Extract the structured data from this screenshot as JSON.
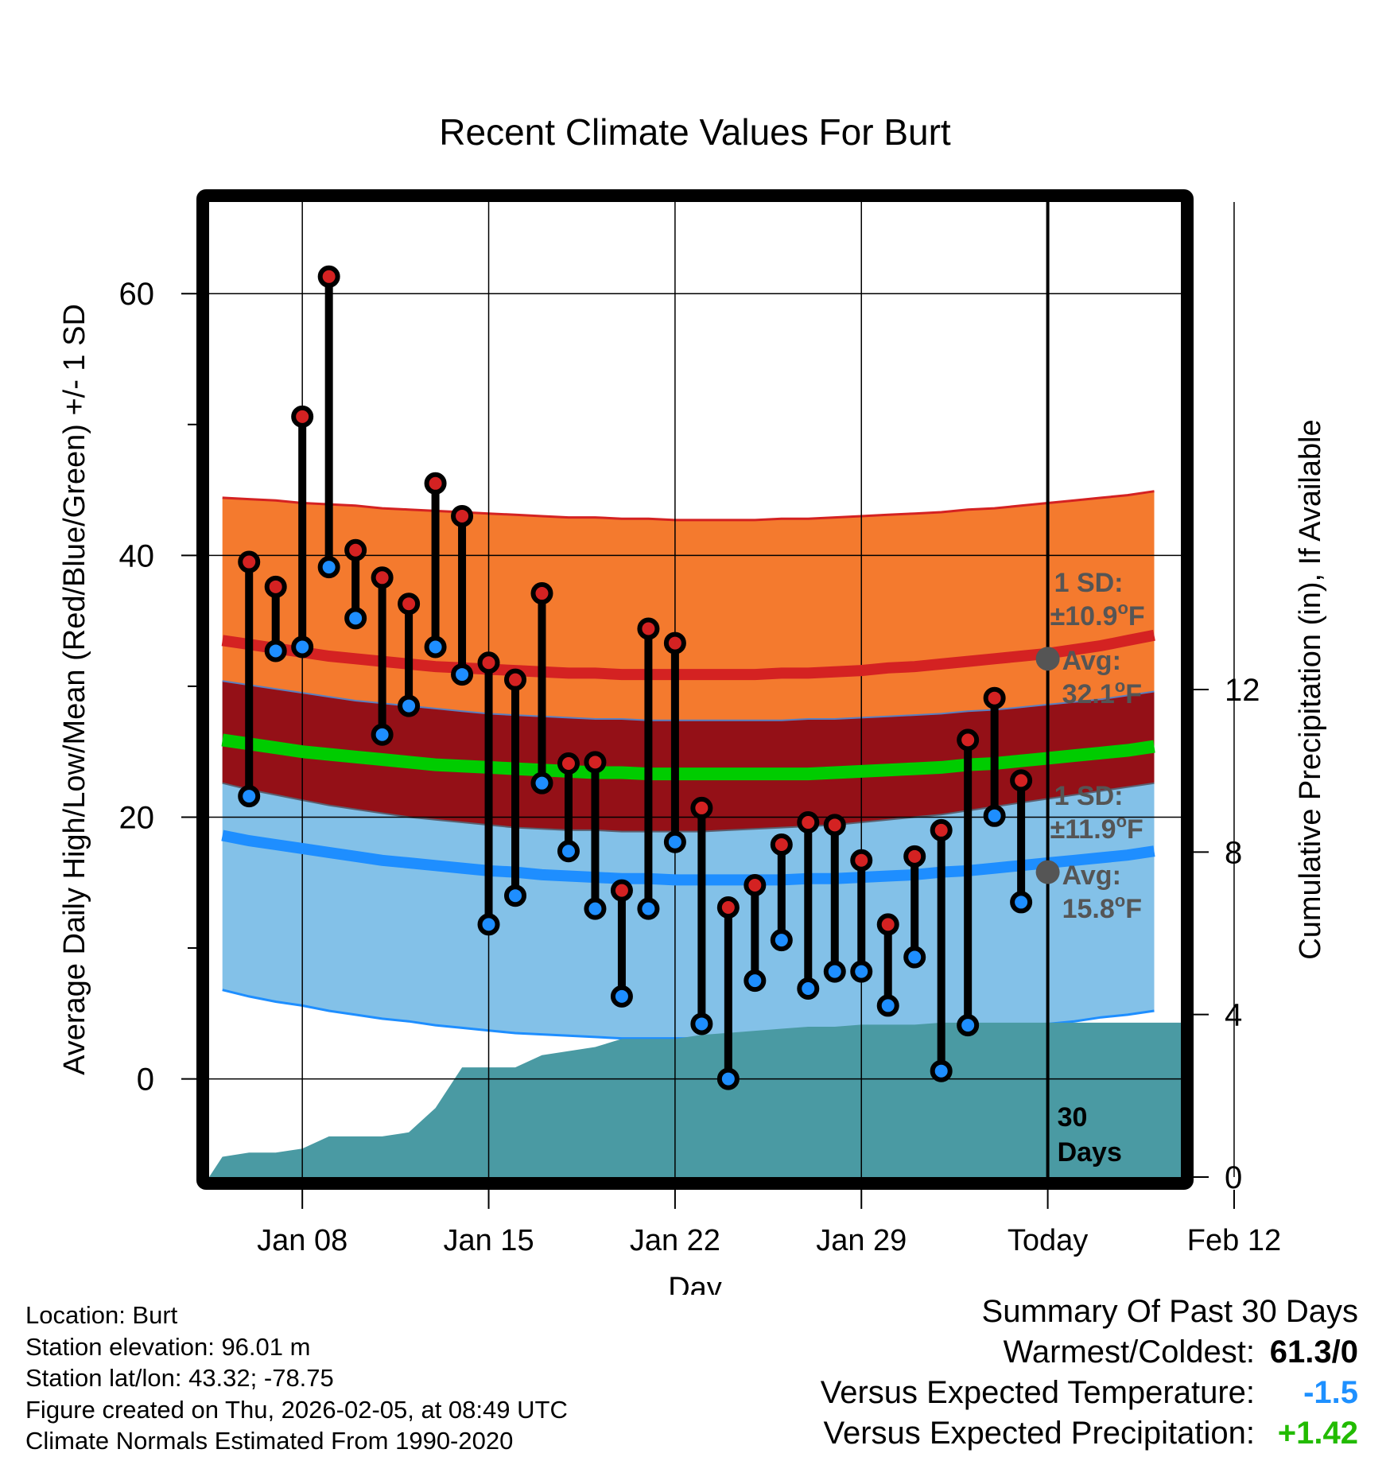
{
  "chart_data": {
    "type": "line",
    "title": "Recent Climate Values For Burt",
    "xlabel": "Day",
    "ylabel": "Average Daily High/Low/Mean (Red/Blue/Green) +/- 1 SD",
    "y2label": "Cumulative Precipitation (in), If Available",
    "ylim": [
      -7.5,
      67
    ],
    "y2lim": [
      0,
      24
    ],
    "xlim": [
      -25.5,
      11
    ],
    "xticks": [
      {
        "day": -22,
        "label": "Jan 08"
      },
      {
        "day": -15,
        "label": "Jan 15"
      },
      {
        "day": -8,
        "label": "Jan 22"
      },
      {
        "day": -1,
        "label": "Jan 29"
      },
      {
        "day": 6,
        "label": "Today"
      },
      {
        "day": 13,
        "label": "Feb 12"
      }
    ],
    "yticks": [
      0,
      20,
      40,
      60
    ],
    "y2ticks": [
      0,
      4,
      8,
      12
    ],
    "grid": true,
    "days": [
      -25,
      -24,
      -23,
      -22,
      -21,
      -20,
      -19,
      -18,
      -17,
      -16,
      -15,
      -14,
      -13,
      -12,
      -11,
      -10,
      -9,
      -8,
      -7,
      -6,
      -5,
      -4,
      -3,
      -2,
      -1,
      0,
      1,
      2,
      3,
      4,
      5,
      6,
      7,
      8,
      9,
      10
    ],
    "normal_high": [
      33.5,
      33.2,
      32.9,
      32.6,
      32.3,
      32.1,
      31.9,
      31.7,
      31.5,
      31.4,
      31.3,
      31.2,
      31.1,
      31.0,
      31.0,
      30.9,
      30.9,
      30.9,
      30.9,
      30.9,
      30.9,
      31.0,
      31.0,
      31.1,
      31.2,
      31.4,
      31.5,
      31.7,
      31.9,
      32.1,
      32.3,
      32.5,
      32.8,
      33.1,
      33.5,
      33.9
    ],
    "normal_high_upper": [
      44.4,
      44.3,
      44.2,
      44.0,
      43.9,
      43.8,
      43.6,
      43.5,
      43.4,
      43.3,
      43.2,
      43.1,
      43.0,
      42.9,
      42.9,
      42.8,
      42.8,
      42.7,
      42.7,
      42.7,
      42.7,
      42.8,
      42.8,
      42.9,
      43.0,
      43.1,
      43.2,
      43.3,
      43.5,
      43.6,
      43.8,
      44.0,
      44.2,
      44.4,
      44.6,
      44.9
    ],
    "normal_high_lower": [
      22.6,
      22.1,
      21.7,
      21.3,
      20.9,
      20.6,
      20.3,
      20.0,
      19.8,
      19.6,
      19.4,
      19.2,
      19.1,
      19.0,
      19.0,
      18.9,
      18.9,
      18.9,
      18.9,
      19.0,
      19.1,
      19.2,
      19.3,
      19.4,
      19.6,
      19.8,
      20.0,
      20.2,
      20.5,
      20.8,
      21.1,
      21.4,
      21.7,
      22.0,
      22.3,
      22.6
    ],
    "normal_mean": [
      25.9,
      25.6,
      25.3,
      25.0,
      24.8,
      24.6,
      24.4,
      24.2,
      24.0,
      23.9,
      23.8,
      23.7,
      23.6,
      23.5,
      23.4,
      23.4,
      23.3,
      23.3,
      23.3,
      23.3,
      23.3,
      23.3,
      23.3,
      23.4,
      23.5,
      23.6,
      23.7,
      23.8,
      24.0,
      24.1,
      24.3,
      24.5,
      24.7,
      24.9,
      25.1,
      25.4
    ],
    "normal_low": [
      18.6,
      18.2,
      17.9,
      17.6,
      17.3,
      17.0,
      16.7,
      16.5,
      16.3,
      16.1,
      15.9,
      15.8,
      15.6,
      15.5,
      15.4,
      15.3,
      15.3,
      15.2,
      15.2,
      15.2,
      15.2,
      15.2,
      15.3,
      15.3,
      15.4,
      15.5,
      15.6,
      15.8,
      15.9,
      16.1,
      16.3,
      16.5,
      16.7,
      16.9,
      17.1,
      17.4
    ],
    "normal_low_upper": [
      30.4,
      30.1,
      29.8,
      29.5,
      29.2,
      28.9,
      28.7,
      28.5,
      28.3,
      28.1,
      27.9,
      27.8,
      27.7,
      27.6,
      27.5,
      27.5,
      27.4,
      27.4,
      27.4,
      27.4,
      27.4,
      27.4,
      27.5,
      27.5,
      27.6,
      27.7,
      27.8,
      27.9,
      28.1,
      28.2,
      28.4,
      28.6,
      28.8,
      29.0,
      29.3,
      29.6
    ],
    "normal_low_lower": [
      6.8,
      6.3,
      5.9,
      5.6,
      5.2,
      4.9,
      4.6,
      4.4,
      4.1,
      3.9,
      3.7,
      3.5,
      3.4,
      3.3,
      3.2,
      3.1,
      3.1,
      3.1,
      3.1,
      3.1,
      3.1,
      3.1,
      3.2,
      3.2,
      3.3,
      3.4,
      3.5,
      3.6,
      3.7,
      3.9,
      4.0,
      4.2,
      4.4,
      4.7,
      4.9,
      5.2
    ],
    "observed_days": [
      -24,
      -23,
      -22,
      -21,
      -20,
      -19,
      -18,
      -17,
      -16,
      -15,
      -14,
      -13,
      -12,
      -11,
      -10,
      -9,
      -8,
      -7,
      -6,
      -5,
      -4,
      -3,
      -2,
      -1,
      0,
      1,
      2,
      3,
      4,
      5
    ],
    "observed_high": [
      39.5,
      37.6,
      50.6,
      61.3,
      40.4,
      38.3,
      36.3,
      45.5,
      43.0,
      31.8,
      30.5,
      37.1,
      24.1,
      24.2,
      14.4,
      34.4,
      33.3,
      20.7,
      13.1,
      14.8,
      17.9,
      19.6,
      19.4,
      16.7,
      11.8,
      17.0,
      19.0,
      25.9,
      29.1,
      22.8
    ],
    "observed_low": [
      21.6,
      32.7,
      33.0,
      39.1,
      35.2,
      26.3,
      28.5,
      33.0,
      30.9,
      11.8,
      14.0,
      22.6,
      17.4,
      13.0,
      6.3,
      13.0,
      18.1,
      4.2,
      0.0,
      7.5,
      10.6,
      6.9,
      8.2,
      8.2,
      5.6,
      9.3,
      0.6,
      4.1,
      20.1,
      13.5
    ],
    "precip_days": [
      -25.5,
      -25,
      -24,
      -23,
      -22.5,
      -22,
      -21,
      -20,
      -19,
      -18,
      -17,
      -16,
      -15,
      -14,
      -13,
      -12,
      -11,
      -10,
      -9,
      -8,
      -7,
      -6,
      -5,
      -4,
      -3,
      -2,
      -1,
      0,
      1,
      2,
      3,
      4,
      5,
      6,
      7,
      8,
      9,
      10,
      11
    ],
    "precip_cum": [
      0,
      0.5,
      0.6,
      0.6,
      0.65,
      0.7,
      1.0,
      1.0,
      1.0,
      1.1,
      1.7,
      2.7,
      2.7,
      2.7,
      3.0,
      3.1,
      3.2,
      3.4,
      3.4,
      3.4,
      3.5,
      3.55,
      3.6,
      3.65,
      3.7,
      3.7,
      3.75,
      3.75,
      3.75,
      3.8,
      3.8,
      3.8,
      3.8,
      3.8,
      3.8,
      3.8,
      3.8,
      3.8,
      3.8
    ],
    "annotations": {
      "today_day": 6,
      "high_sd_line1": "1 SD:",
      "high_sd_line2": "±10.9",
      "high_avg_line1": "Avg:",
      "high_avg_line2": "32.1",
      "high_avg_value": 32.1,
      "low_sd_line1": "1 SD:",
      "low_sd_line2": "±11.9",
      "low_avg_line1": "Avg:",
      "low_avg_line2": "15.8",
      "low_avg_value": 15.8,
      "degree_symbol": "o",
      "unit": "F",
      "days_line1": "30",
      "days_line2": "Days"
    },
    "colors": {
      "high_band": "#f47a2e",
      "high_line": "#d42222",
      "overlap_band": "#941017",
      "low_band": "#83c1e8",
      "low_line": "#1e8eff",
      "mean_line": "#00cc00",
      "precip": "#4a9aa3",
      "high_marker": "#d42222",
      "low_marker": "#1e8eff",
      "annotation": "#555555"
    }
  },
  "footer": {
    "location": "Location: Burt",
    "elevation": "Station elevation: 96.01 m",
    "latlon": "Station lat/lon: 43.32; -78.75",
    "created": "Figure created on Thu, 2026-02-05, at 08:49 UTC",
    "normals": "Climate Normals Estimated From 1990-2020"
  },
  "summary": {
    "title": "Summary Of Past 30 Days",
    "warmest_label": "Warmest/Coldest:",
    "warmest_value": "61.3/0",
    "temp_label": "Versus Expected Temperature:",
    "temp_value": "-1.5",
    "precip_label": "Versus Expected Precipitation:",
    "precip_value": "+1.42"
  }
}
